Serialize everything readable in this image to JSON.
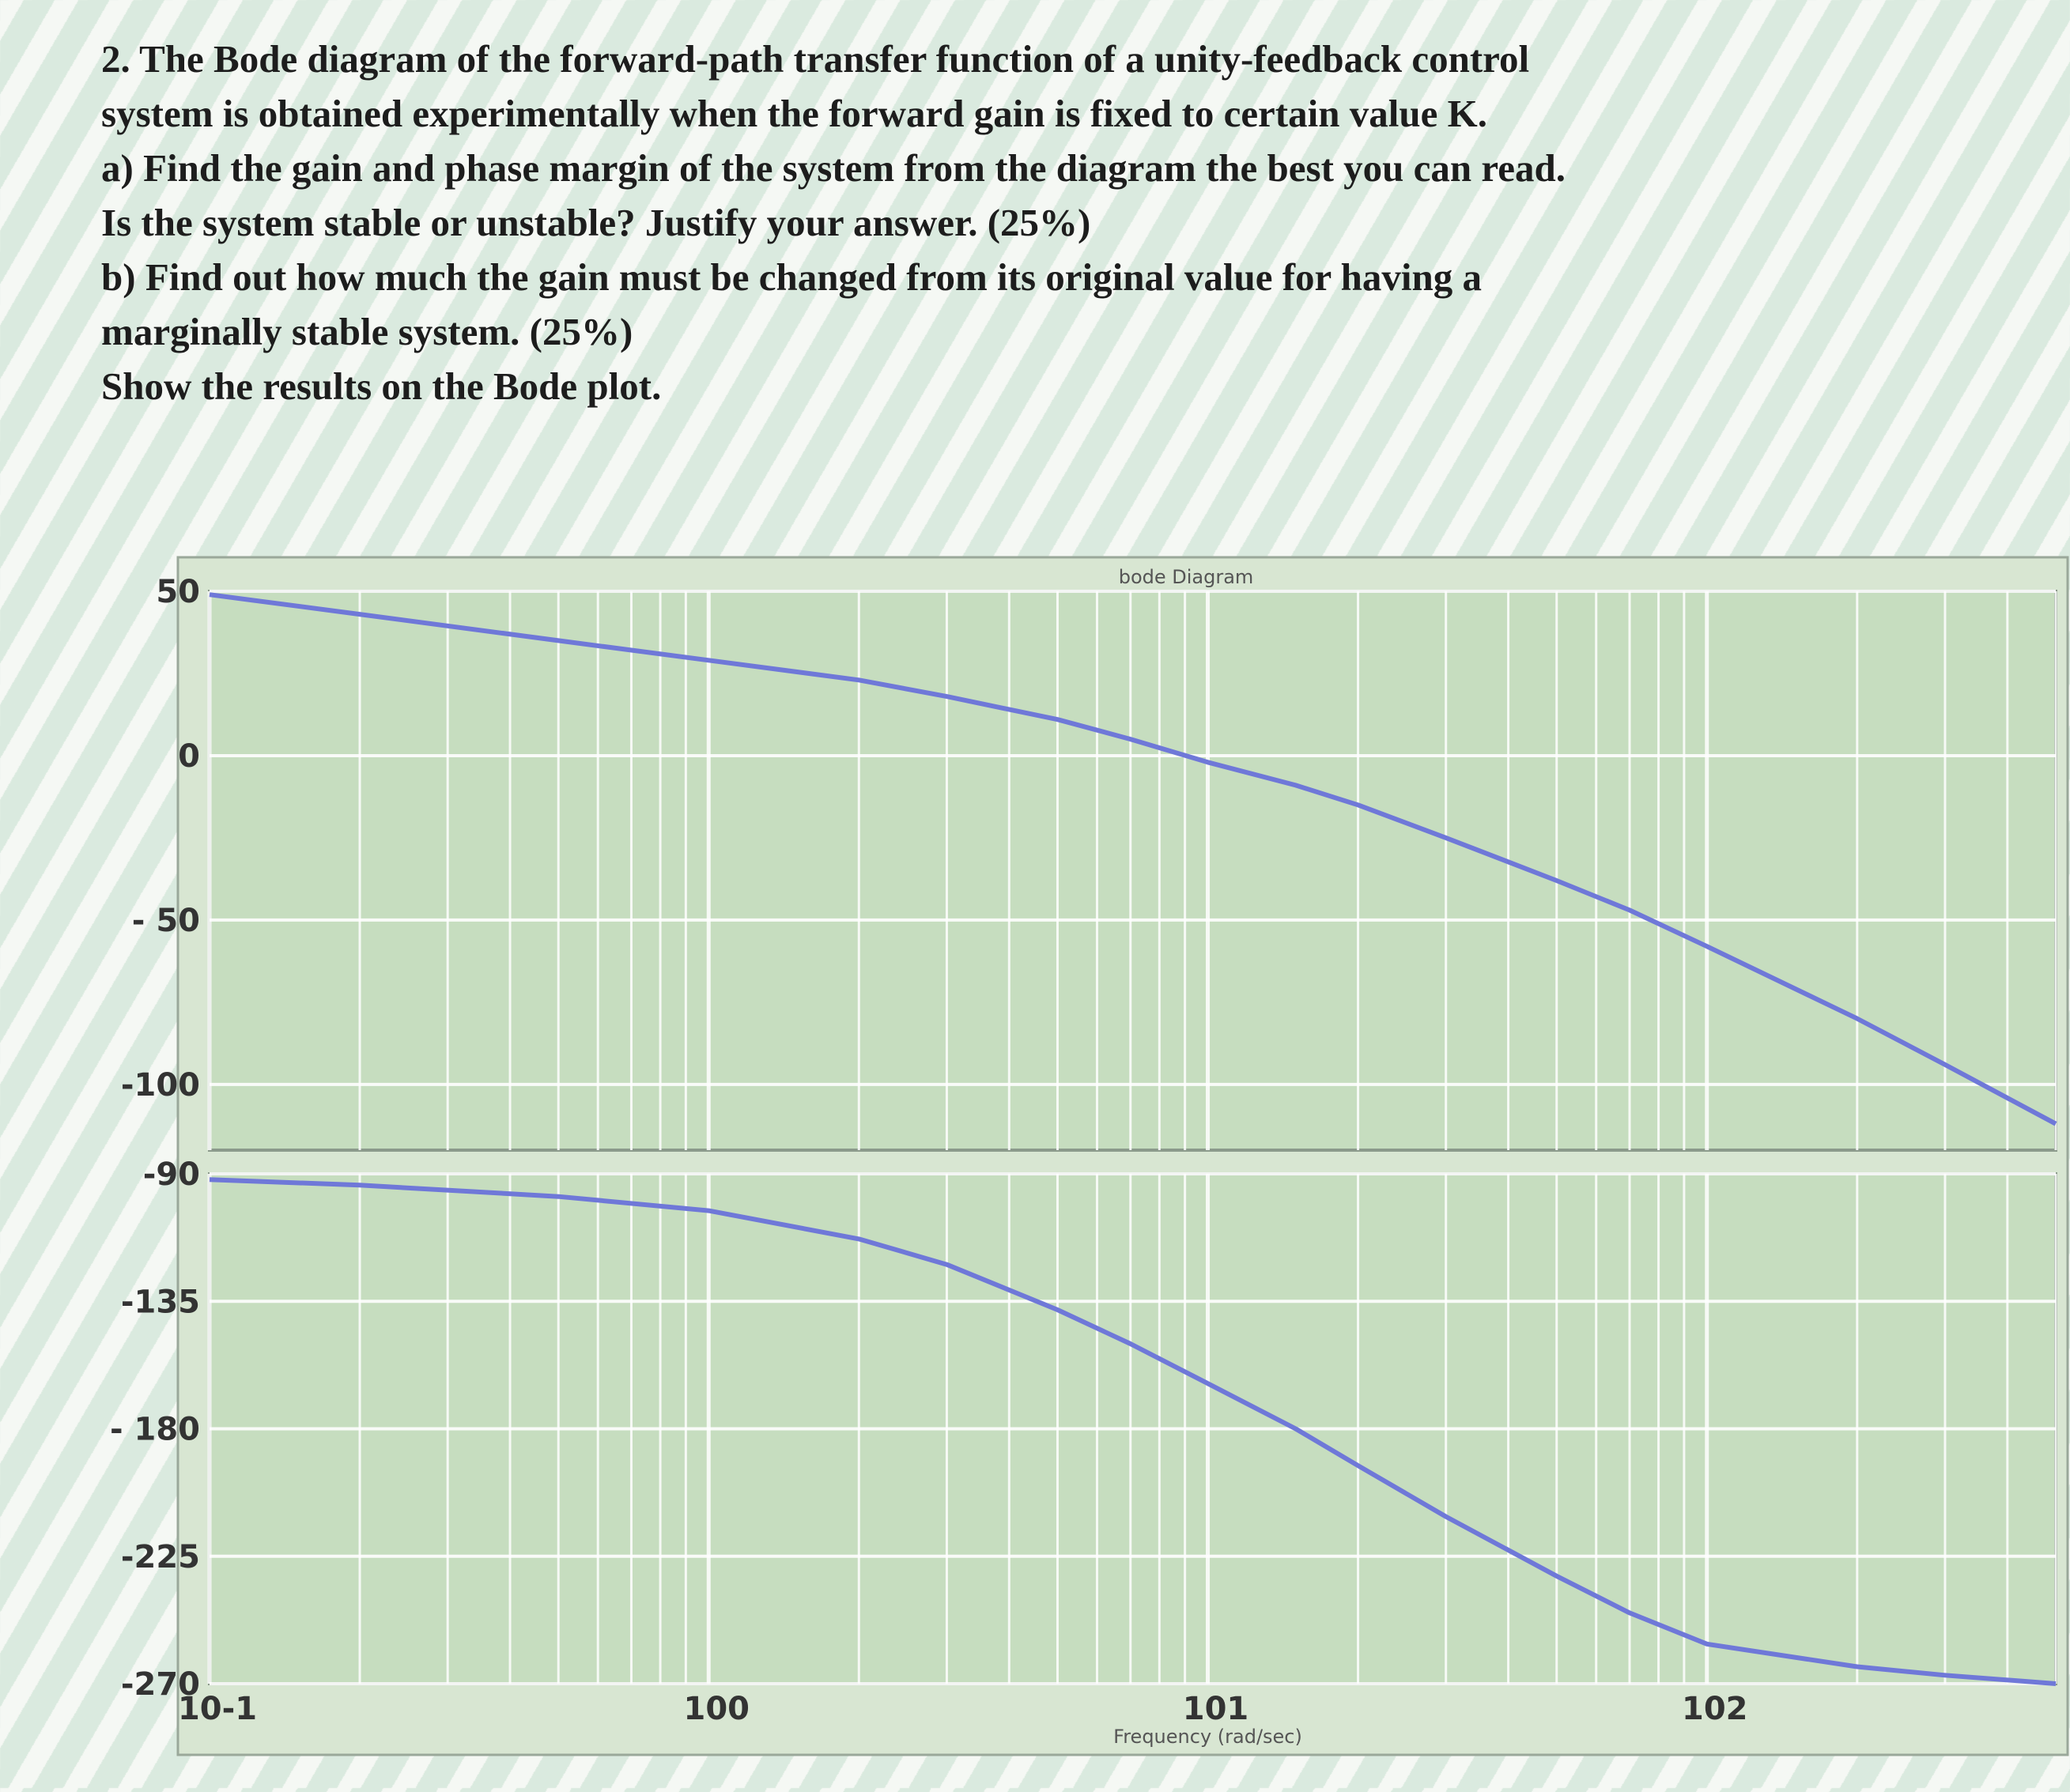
{
  "question": {
    "lines": [
      "2. The Bode diagram of the forward-path transfer function of a unity-feedback control",
      "system is obtained experimentally when the forward gain is fixed to certain value K.",
      "a) Find the gain and phase margin of the system from the diagram the best you can read.",
      "Is the system stable or unstable? Justify your answer. (25%)",
      "b) Find out how much the gain must be changed from its original value for having a",
      "marginally stable system. (25%)",
      "Show the results on the Bode plot."
    ]
  },
  "chart_data": {
    "type": "line",
    "title": "bode Diagram",
    "xlabel": "Frequency (rad/sec)",
    "x_scale": "log",
    "xlim": [
      0.1,
      500
    ],
    "x_ticks": [
      0.1,
      1,
      10,
      100
    ],
    "x_tick_labels": [
      "10-1",
      "100",
      "101",
      "102"
    ],
    "grid": true,
    "colors": {
      "line": "#6f78d8",
      "grid": "#ffffff",
      "plot_bg": "#c6ddbf"
    },
    "magnitude": {
      "ylabel": "",
      "ylim": [
        -120,
        50
      ],
      "y_ticks": [
        50,
        0,
        -50,
        -100
      ],
      "y_tick_labels": [
        "50",
        "0",
        "- 50",
        "-100"
      ],
      "series": [
        {
          "x": [
            0.1,
            0.2,
            0.5,
            1,
            2,
            3,
            5,
            7,
            10,
            15,
            20,
            30,
            50,
            70,
            100,
            200,
            300,
            500
          ],
          "y": [
            49,
            43,
            35,
            29,
            23,
            18,
            11,
            5,
            -2,
            -9,
            -15,
            -25,
            -38,
            -47,
            -58,
            -80,
            -94,
            -112
          ]
        }
      ]
    },
    "phase": {
      "ylabel": "",
      "ylim": [
        -270,
        -90
      ],
      "y_ticks": [
        -90,
        -135,
        -180,
        -225,
        -270
      ],
      "y_tick_labels": [
        "-90",
        "-135",
        "- 180",
        "-225",
        "-270"
      ],
      "series": [
        {
          "x": [
            0.1,
            0.2,
            0.5,
            1,
            2,
            3,
            5,
            7,
            10,
            15,
            20,
            30,
            50,
            70,
            100,
            200,
            300,
            500
          ],
          "y": [
            -92,
            -94,
            -98,
            -103,
            -113,
            -122,
            -138,
            -150,
            -164,
            -180,
            -193,
            -211,
            -232,
            -245,
            -256,
            -264,
            -267,
            -270
          ]
        }
      ]
    }
  }
}
